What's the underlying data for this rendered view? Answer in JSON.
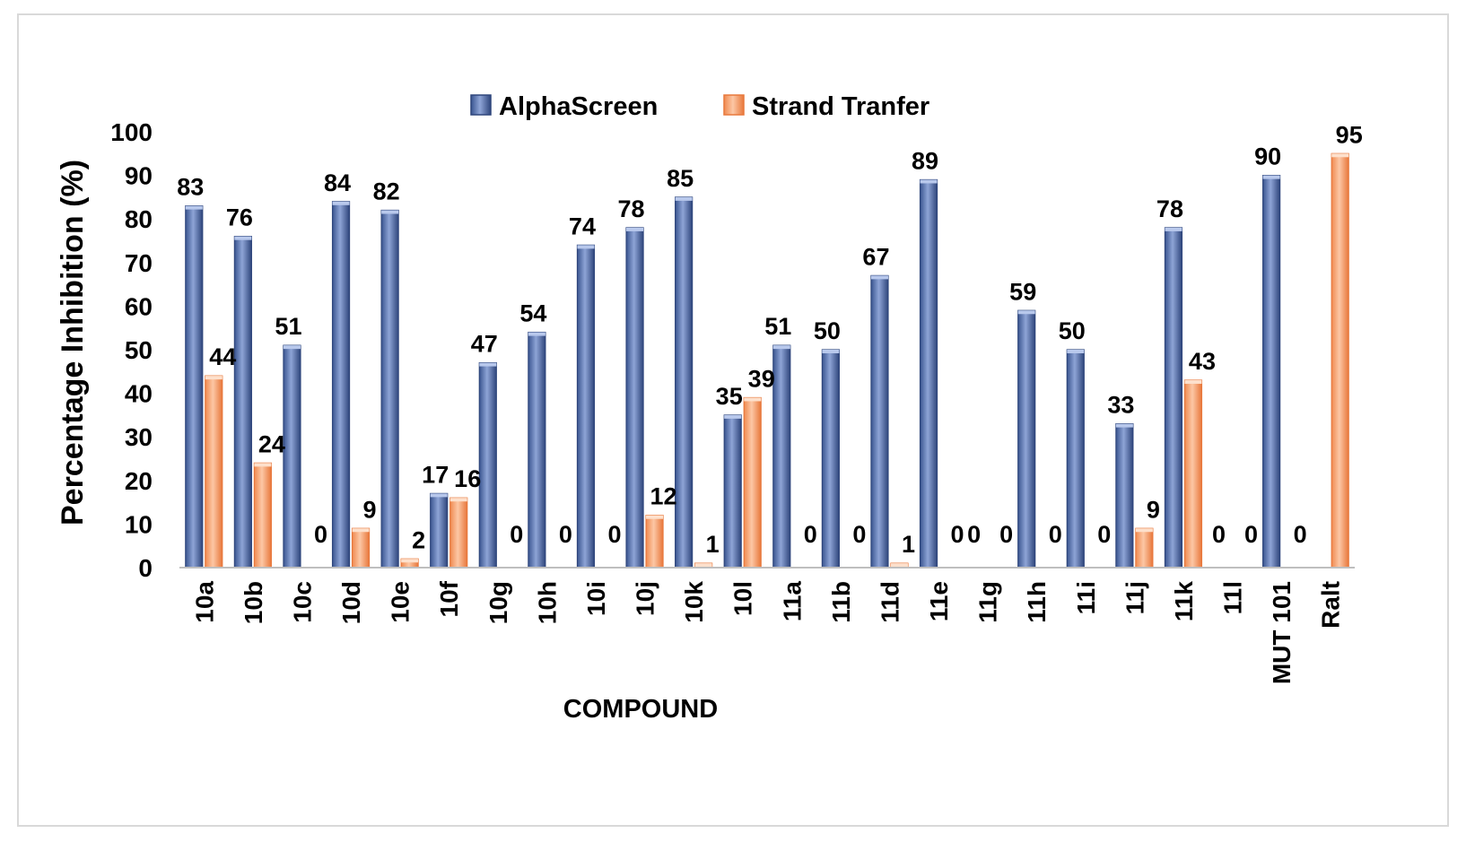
{
  "chart_data": {
    "type": "bar",
    "xlabel": "COMPOUND",
    "ylabel": "Percentage Inhibition (%)",
    "ylim": [
      0,
      100
    ],
    "yticks": [
      0,
      10,
      20,
      30,
      40,
      50,
      60,
      70,
      80,
      90,
      100
    ],
    "grid": false,
    "legend_position": "top",
    "categories": [
      "10a",
      "10b",
      "10c",
      "10d",
      "10e",
      "10f",
      "10g",
      "10h",
      "10i",
      "10j",
      "10k",
      "10l",
      "11a",
      "11b",
      "11d",
      "11e",
      "11g",
      "11h",
      "11i",
      "11j",
      "11k",
      "11l",
      "MUT 101",
      "Ralt"
    ],
    "series": [
      {
        "name": "AlphaScreen",
        "color": "#4a67a8",
        "values": [
          83,
          76,
          51,
          84,
          82,
          17,
          47,
          54,
          74,
          78,
          85,
          35,
          51,
          50,
          67,
          89,
          0,
          59,
          50,
          33,
          78,
          0,
          90,
          0
        ],
        "labels": [
          "83",
          "76",
          "51",
          "84",
          "82",
          "17",
          "47",
          "54",
          "74",
          "78",
          "85",
          "35",
          "51",
          "50",
          "67",
          "89",
          "0",
          "59",
          "50",
          "33",
          "78",
          "0",
          "90",
          ""
        ]
      },
      {
        "name": "Strand Tranfer",
        "color": "#f4a070",
        "values": [
          44,
          24,
          0,
          9,
          2,
          16,
          0,
          0,
          0,
          12,
          1,
          39,
          0,
          0,
          1,
          0,
          0,
          0,
          0,
          9,
          43,
          0,
          0,
          95
        ],
        "labels": [
          "44",
          "24",
          "0",
          "9",
          "2",
          "16",
          "0",
          "0",
          "0",
          "12",
          "1",
          "39",
          "0",
          "0",
          "1",
          "0",
          "0",
          "0",
          "0",
          "9",
          "43",
          "0",
          "0",
          "95"
        ]
      }
    ]
  }
}
